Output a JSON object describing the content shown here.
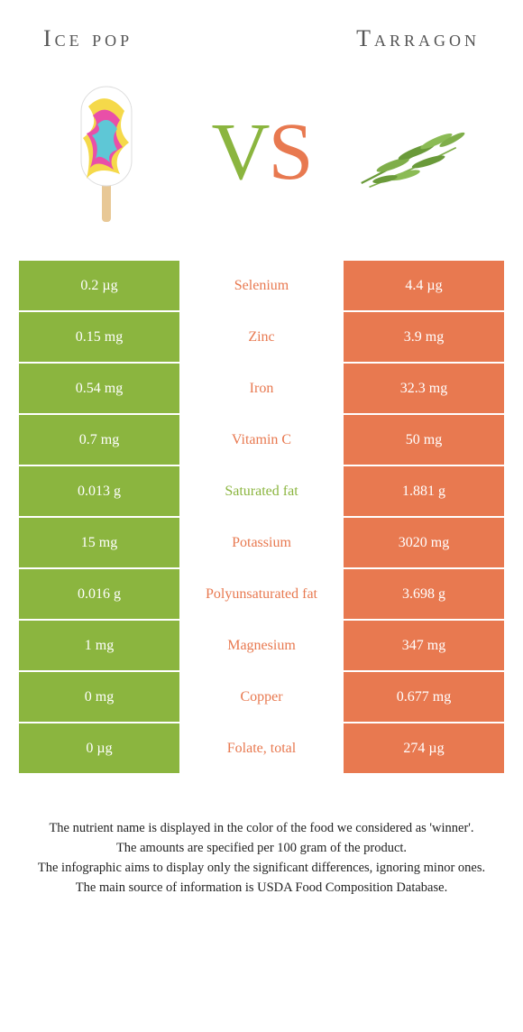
{
  "colors": {
    "left": "#8bb53f",
    "right": "#e87950",
    "left_text": "#ffffff",
    "right_text": "#ffffff",
    "vs_v": "#8bb53f",
    "vs_s": "#e87950",
    "header_text": "#555555",
    "footer_text": "#222222"
  },
  "header": {
    "left_title": "Ice pop",
    "right_title": "Tarragon"
  },
  "vs": {
    "v": "V",
    "s": "S"
  },
  "rows": [
    {
      "left": "0.2 µg",
      "label": "Selenium",
      "right": "4.4 µg",
      "winner": "right"
    },
    {
      "left": "0.15 mg",
      "label": "Zinc",
      "right": "3.9 mg",
      "winner": "right"
    },
    {
      "left": "0.54 mg",
      "label": "Iron",
      "right": "32.3 mg",
      "winner": "right"
    },
    {
      "left": "0.7 mg",
      "label": "Vitamin C",
      "right": "50 mg",
      "winner": "right"
    },
    {
      "left": "0.013 g",
      "label": "Saturated fat",
      "right": "1.881 g",
      "winner": "left"
    },
    {
      "left": "15 mg",
      "label": "Potassium",
      "right": "3020 mg",
      "winner": "right"
    },
    {
      "left": "0.016 g",
      "label": "Polyunsaturated fat",
      "right": "3.698 g",
      "winner": "right"
    },
    {
      "left": "1 mg",
      "label": "Magnesium",
      "right": "347 mg",
      "winner": "right"
    },
    {
      "left": "0 mg",
      "label": "Copper",
      "right": "0.677 mg",
      "winner": "right"
    },
    {
      "left": "0 µg",
      "label": "Folate, total",
      "right": "274 µg",
      "winner": "right"
    }
  ],
  "footer": {
    "line1": "The nutrient name is displayed in the color of the food we considered as 'winner'.",
    "line2": "The amounts are specified per 100 gram of the product.",
    "line3": "The infographic aims to display only the significant differences, ignoring minor ones.",
    "line4": "The main source of information is USDA Food Composition Database."
  }
}
